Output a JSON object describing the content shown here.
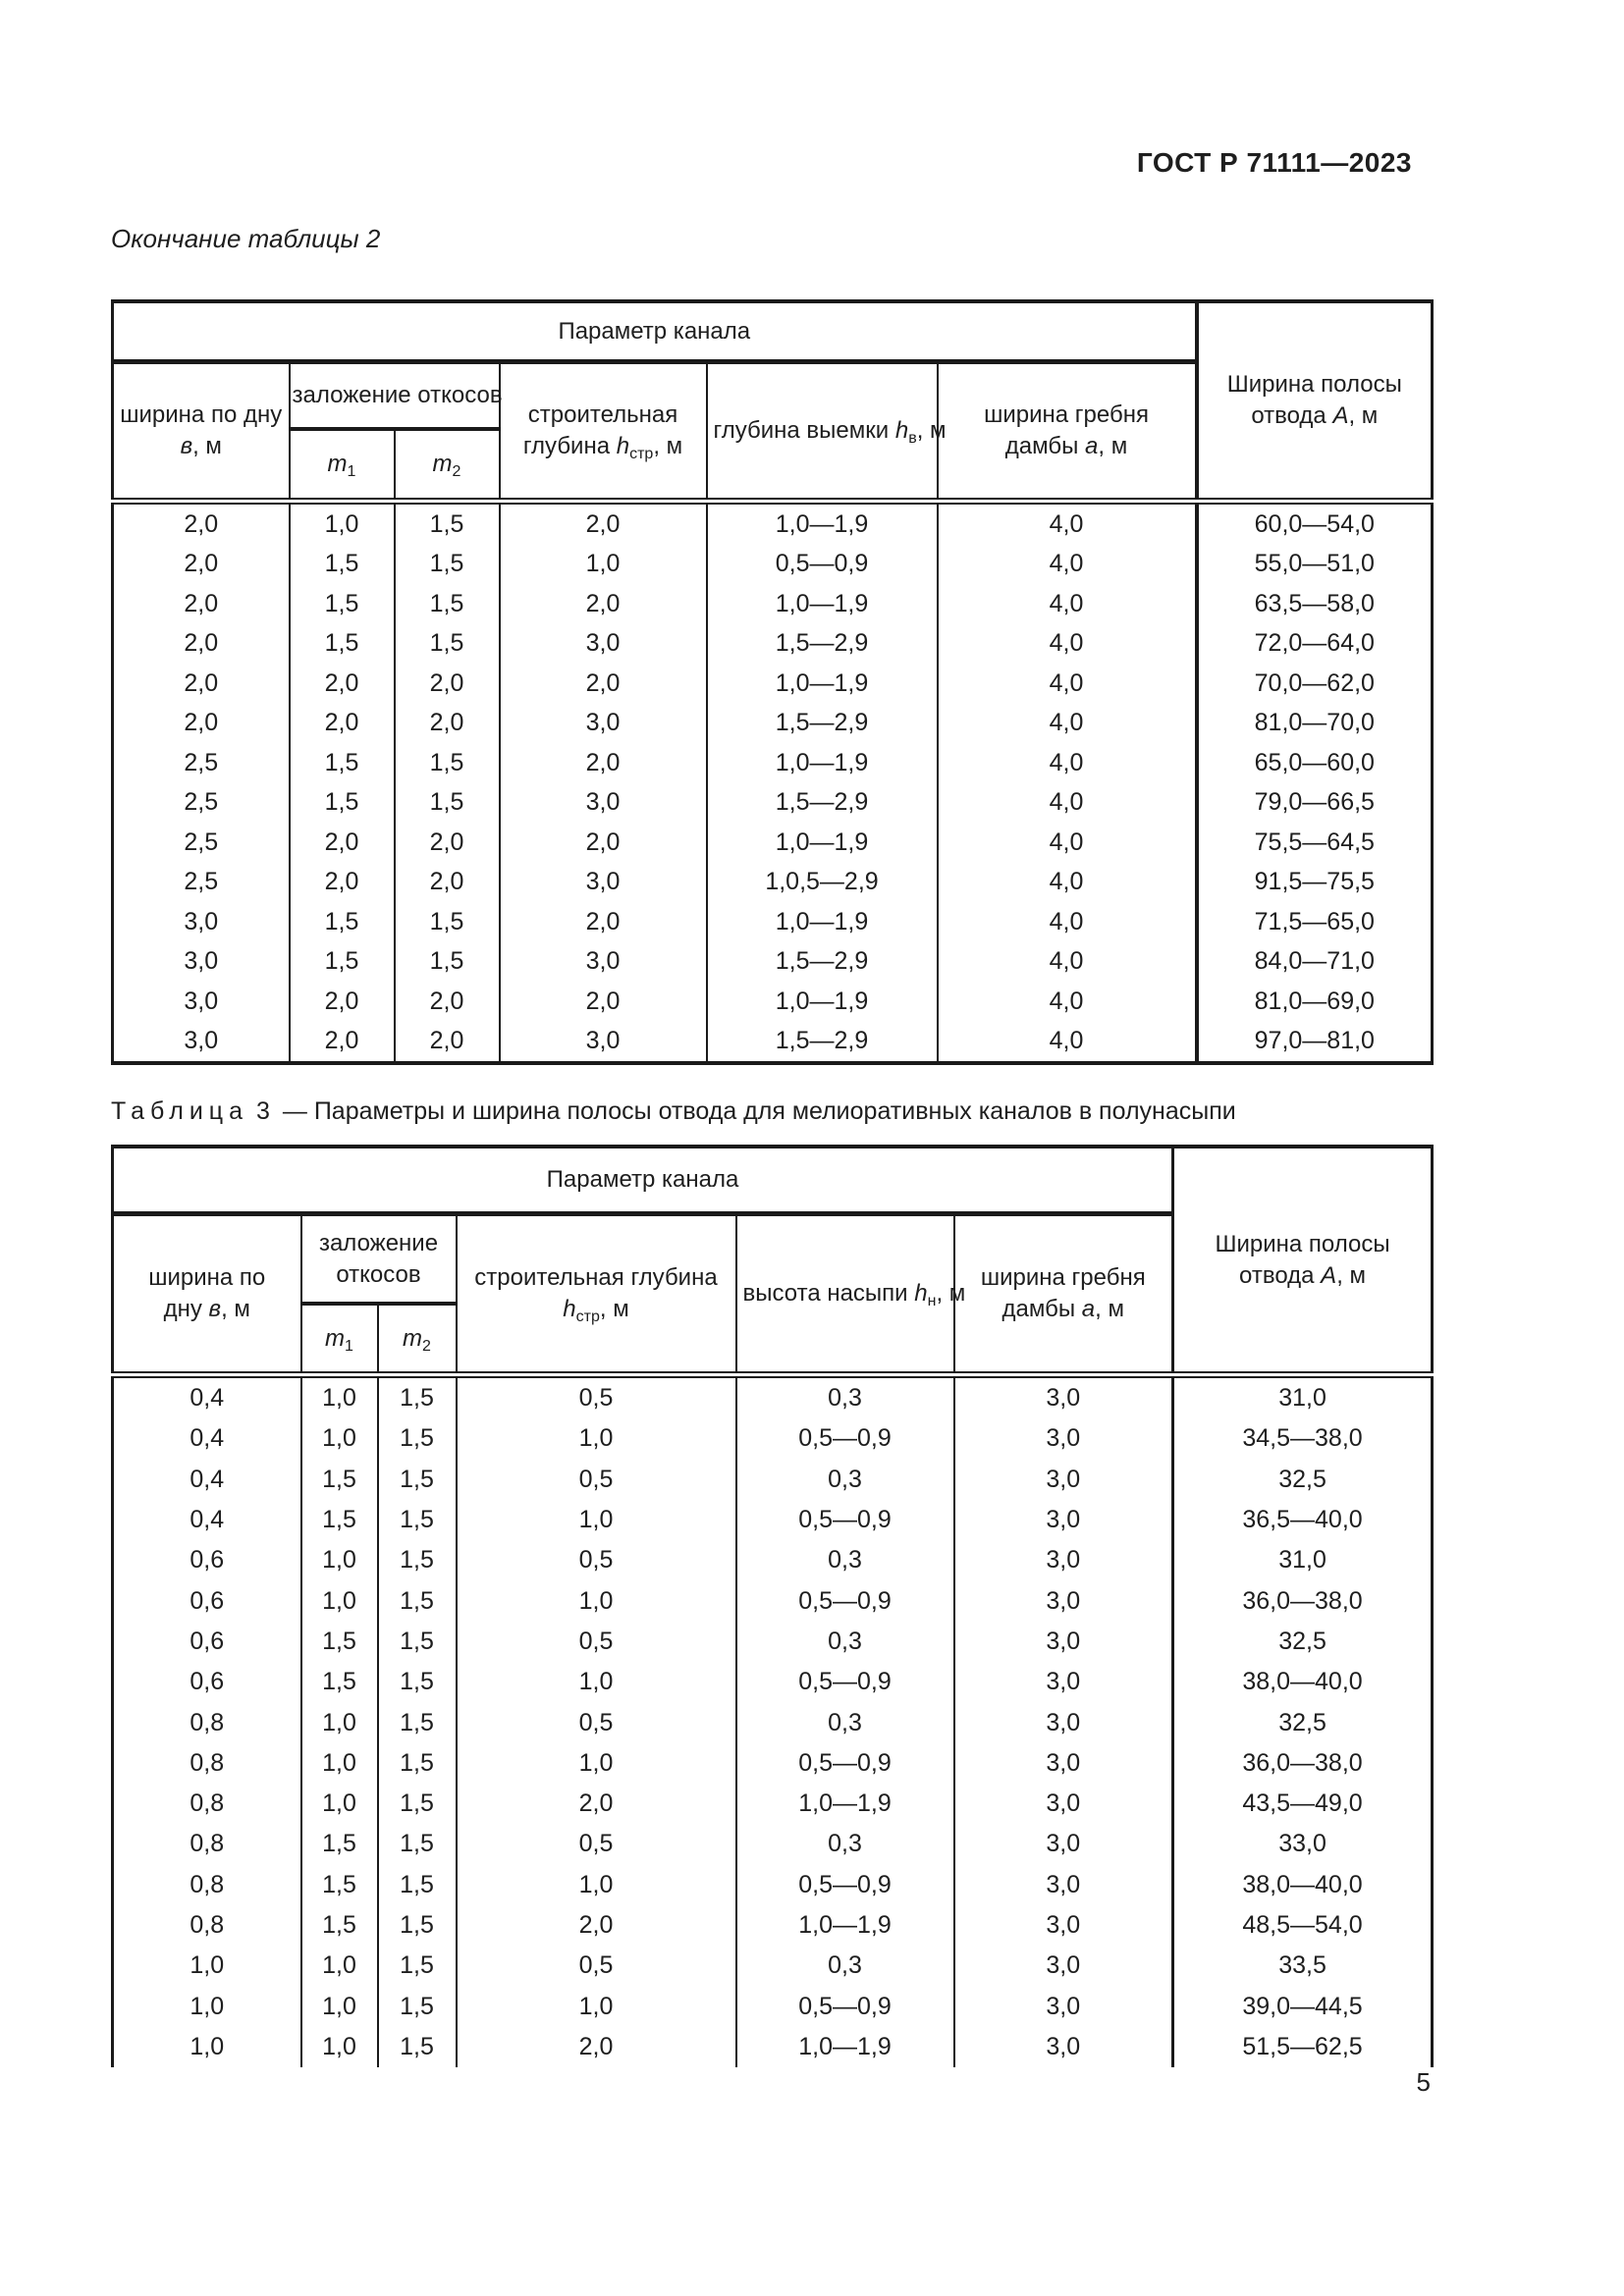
{
  "page": {
    "doc_code": "ГОСТ Р 71111—2023",
    "continuation_label": "Окончание таблицы 2",
    "page_number": "5"
  },
  "table2": {
    "header": {
      "param_group": "Параметр канала",
      "bottom_width": {
        "pre": "ширина по дну ",
        "sym": "в",
        "post": ", м"
      },
      "slopes": "заложение откосов",
      "m1": {
        "sym": "m",
        "sub": "1"
      },
      "m2": {
        "sym": "m",
        "sub": "2"
      },
      "build_depth": {
        "pre": "строительная глубина ",
        "sym": "h",
        "sub": "стр",
        "post": ", м"
      },
      "cut_depth": {
        "pre": "глубина выемки ",
        "sym": "h",
        "sub": "в",
        "post": ", м"
      },
      "crest_width": {
        "pre": "ширина гребня дамбы ",
        "sym": "а",
        "post": ", м"
      },
      "strip_width": {
        "pre": "Ширина полосы отвода ",
        "sym": "А",
        "post": ", м"
      }
    },
    "rows": [
      [
        "2,0",
        "1,0",
        "1,5",
        "2,0",
        "1,0—1,9",
        "4,0",
        "60,0—54,0"
      ],
      [
        "2,0",
        "1,5",
        "1,5",
        "1,0",
        "0,5—0,9",
        "4,0",
        "55,0—51,0"
      ],
      [
        "2,0",
        "1,5",
        "1,5",
        "2,0",
        "1,0—1,9",
        "4,0",
        "63,5—58,0"
      ],
      [
        "2,0",
        "1,5",
        "1,5",
        "3,0",
        "1,5—2,9",
        "4,0",
        "72,0—64,0"
      ],
      [
        "2,0",
        "2,0",
        "2,0",
        "2,0",
        "1,0—1,9",
        "4,0",
        "70,0—62,0"
      ],
      [
        "2,0",
        "2,0",
        "2,0",
        "3,0",
        "1,5—2,9",
        "4,0",
        "81,0—70,0"
      ],
      [
        "2,5",
        "1,5",
        "1,5",
        "2,0",
        "1,0—1,9",
        "4,0",
        "65,0—60,0"
      ],
      [
        "2,5",
        "1,5",
        "1,5",
        "3,0",
        "1,5—2,9",
        "4,0",
        "79,0—66,5"
      ],
      [
        "2,5",
        "2,0",
        "2,0",
        "2,0",
        "1,0—1,9",
        "4,0",
        "75,5—64,5"
      ],
      [
        "2,5",
        "2,0",
        "2,0",
        "3,0",
        "1,0,5—2,9",
        "4,0",
        "91,5—75,5"
      ],
      [
        "3,0",
        "1,5",
        "1,5",
        "2,0",
        "1,0—1,9",
        "4,0",
        "71,5—65,0"
      ],
      [
        "3,0",
        "1,5",
        "1,5",
        "3,0",
        "1,5—2,9",
        "4,0",
        "84,0—71,0"
      ],
      [
        "3,0",
        "2,0",
        "2,0",
        "2,0",
        "1,0—1,9",
        "4,0",
        "81,0—69,0"
      ],
      [
        "3,0",
        "2,0",
        "2,0",
        "3,0",
        "1,5—2,9",
        "4,0",
        "97,0—81,0"
      ]
    ]
  },
  "table3": {
    "caption": {
      "label": "Таблица",
      "number": "3",
      "rest": "— Параметры и ширина полосы отвода для мелиоративных каналов в полунасыпи"
    },
    "header": {
      "param_group": "Параметр канала",
      "bottom_width": {
        "pre": "ширина по дну ",
        "sym": "в",
        "post": ", м"
      },
      "slopes": "заложение откосов",
      "m1": {
        "sym": "m",
        "sub": "1"
      },
      "m2": {
        "sym": "m",
        "sub": "2"
      },
      "build_depth": {
        "pre": "строительная глубина ",
        "sym": "h",
        "sub": "стр",
        "post": ", м"
      },
      "fill_height": {
        "pre": "высота насыпи ",
        "sym": "h",
        "sub": "н",
        "post": ", м"
      },
      "crest_width": {
        "pre": "ширина гребня дамбы ",
        "sym": "а",
        "post": ", м"
      },
      "strip_width": {
        "pre": "Ширина полосы отвода ",
        "sym": "А",
        "post": ", м"
      }
    },
    "rows": [
      [
        "0,4",
        "1,0",
        "1,5",
        "0,5",
        "0,3",
        "3,0",
        "31,0"
      ],
      [
        "0,4",
        "1,0",
        "1,5",
        "1,0",
        "0,5—0,9",
        "3,0",
        "34,5—38,0"
      ],
      [
        "0,4",
        "1,5",
        "1,5",
        "0,5",
        "0,3",
        "3,0",
        "32,5"
      ],
      [
        "0,4",
        "1,5",
        "1,5",
        "1,0",
        "0,5—0,9",
        "3,0",
        "36,5—40,0"
      ],
      [
        "0,6",
        "1,0",
        "1,5",
        "0,5",
        "0,3",
        "3,0",
        "31,0"
      ],
      [
        "0,6",
        "1,0",
        "1,5",
        "1,0",
        "0,5—0,9",
        "3,0",
        "36,0—38,0"
      ],
      [
        "0,6",
        "1,5",
        "1,5",
        "0,5",
        "0,3",
        "3,0",
        "32,5"
      ],
      [
        "0,6",
        "1,5",
        "1,5",
        "1,0",
        "0,5—0,9",
        "3,0",
        "38,0—40,0"
      ],
      [
        "0,8",
        "1,0",
        "1,5",
        "0,5",
        "0,3",
        "3,0",
        "32,5"
      ],
      [
        "0,8",
        "1,0",
        "1,5",
        "1,0",
        "0,5—0,9",
        "3,0",
        "36,0—38,0"
      ],
      [
        "0,8",
        "1,0",
        "1,5",
        "2,0",
        "1,0—1,9",
        "3,0",
        "43,5—49,0"
      ],
      [
        "0,8",
        "1,5",
        "1,5",
        "0,5",
        "0,3",
        "3,0",
        "33,0"
      ],
      [
        "0,8",
        "1,5",
        "1,5",
        "1,0",
        "0,5—0,9",
        "3,0",
        "38,0—40,0"
      ],
      [
        "0,8",
        "1,5",
        "1,5",
        "2,0",
        "1,0—1,9",
        "3,0",
        "48,5—54,0"
      ],
      [
        "1,0",
        "1,0",
        "1,5",
        "0,5",
        "0,3",
        "3,0",
        "33,5"
      ],
      [
        "1,0",
        "1,0",
        "1,5",
        "1,0",
        "0,5—0,9",
        "3,0",
        "39,0—44,5"
      ],
      [
        "1,0",
        "1,0",
        "1,5",
        "2,0",
        "1,0—1,9",
        "3,0",
        "51,5—62,5"
      ]
    ]
  }
}
